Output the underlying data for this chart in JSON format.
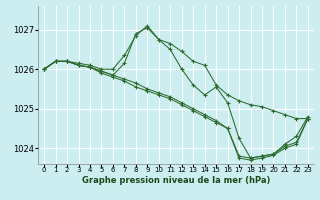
{
  "title": "Graphe pression niveau de la mer (hPa)",
  "bg_color": "#cceef0",
  "grid_color": "#ffffff",
  "line_color": "#2d6a2d",
  "xlim": [
    -0.5,
    23.5
  ],
  "ylim": [
    1023.6,
    1027.6
  ],
  "yticks": [
    1024,
    1025,
    1026,
    1027
  ],
  "xticks": [
    0,
    1,
    2,
    3,
    4,
    5,
    6,
    7,
    8,
    9,
    10,
    11,
    12,
    13,
    14,
    15,
    16,
    17,
    18,
    19,
    20,
    21,
    22,
    23
  ],
  "lines": [
    [
      1026.0,
      1026.2,
      1026.2,
      1026.15,
      1026.1,
      1026.0,
      1026.0,
      1026.35,
      1026.85,
      1027.1,
      1026.75,
      1026.65,
      1026.45,
      1026.2,
      1026.1,
      1025.6,
      1025.35,
      1025.2,
      1025.1,
      1025.05,
      1024.95,
      1024.85,
      1024.75,
      1024.75
    ],
    [
      1026.0,
      1026.2,
      1026.2,
      1026.1,
      1026.05,
      1025.95,
      1025.85,
      1025.75,
      1025.65,
      1025.5,
      1025.4,
      1025.3,
      1025.15,
      1025.0,
      1024.85,
      1024.7,
      1024.5,
      1023.8,
      1023.75,
      1023.8,
      1023.85,
      1024.05,
      1024.15,
      1024.75
    ],
    [
      1026.0,
      1026.2,
      1026.2,
      1026.1,
      1026.05,
      1025.9,
      1025.8,
      1025.7,
      1025.55,
      1025.45,
      1025.35,
      1025.25,
      1025.1,
      1024.95,
      1024.8,
      1024.65,
      1024.5,
      1023.75,
      1023.7,
      1023.75,
      1023.82,
      1024.0,
      1024.1,
      1024.75
    ],
    [
      1026.0,
      1026.2,
      1026.2,
      1026.1,
      1026.05,
      1025.95,
      1025.85,
      1026.15,
      1026.9,
      1027.05,
      1026.75,
      1026.5,
      1026.0,
      1025.6,
      1025.35,
      1025.55,
      1025.15,
      1024.25,
      1023.75,
      1023.8,
      1023.85,
      1024.1,
      1024.3,
      1024.8
    ]
  ]
}
